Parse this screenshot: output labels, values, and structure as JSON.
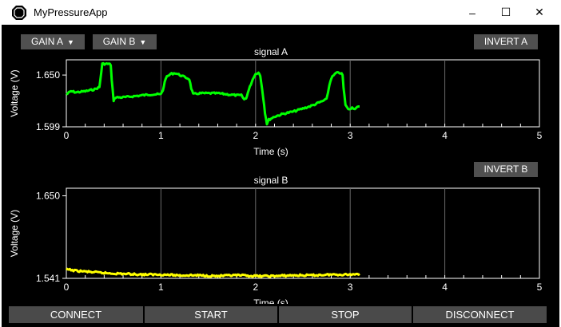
{
  "window": {
    "title": "MyPressureApp",
    "minimize": "–",
    "maximize": "☐",
    "close": "✕"
  },
  "controls": {
    "gain_a": "GAIN A",
    "gain_b": "GAIN B",
    "invert_a": "INVERT A",
    "invert_b": "INVERT B"
  },
  "colors": {
    "signal_a": "#00ff00",
    "signal_b": "#ffff00",
    "button_bg": "#505050"
  },
  "chart_data": [
    {
      "type": "line",
      "title": "signal A",
      "xlabel": "Time (s)",
      "ylabel": "Voltage (V)",
      "xlim": [
        0,
        5
      ],
      "ylim": [
        1.599,
        1.665
      ],
      "xticks": [
        "0",
        "1",
        "2",
        "3",
        "4",
        "5"
      ],
      "yticks": [
        "1.599",
        "1.650"
      ],
      "grid": "vertical",
      "series": [
        {
          "color": "#00ff00",
          "points": [
            [
              0,
              1.631
            ],
            [
              0.05,
              1.634
            ],
            [
              0.1,
              1.633
            ],
            [
              0.2,
              1.634
            ],
            [
              0.3,
              1.636
            ],
            [
              0.35,
              1.638
            ],
            [
              0.38,
              1.661
            ],
            [
              0.45,
              1.661
            ],
            [
              0.47,
              1.66
            ],
            [
              0.48,
              1.645
            ],
            [
              0.5,
              1.625
            ],
            [
              0.52,
              1.628
            ],
            [
              0.6,
              1.628
            ],
            [
              0.7,
              1.629
            ],
            [
              0.8,
              1.63
            ],
            [
              0.9,
              1.631
            ],
            [
              1.0,
              1.631
            ],
            [
              1.02,
              1.635
            ],
            [
              1.05,
              1.647
            ],
            [
              1.1,
              1.651
            ],
            [
              1.15,
              1.652
            ],
            [
              1.2,
              1.65
            ],
            [
              1.25,
              1.648
            ],
            [
              1.3,
              1.646
            ],
            [
              1.32,
              1.637
            ],
            [
              1.34,
              1.631
            ],
            [
              1.4,
              1.632
            ],
            [
              1.5,
              1.632
            ],
            [
              1.6,
              1.632
            ],
            [
              1.7,
              1.631
            ],
            [
              1.8,
              1.63
            ],
            [
              1.85,
              1.63
            ],
            [
              1.88,
              1.626
            ],
            [
              1.9,
              1.627
            ],
            [
              1.92,
              1.633
            ],
            [
              1.95,
              1.641
            ],
            [
              1.98,
              1.648
            ],
            [
              2.0,
              1.651
            ],
            [
              2.03,
              1.653
            ],
            [
              2.05,
              1.649
            ],
            [
              2.07,
              1.636
            ],
            [
              2.1,
              1.613
            ],
            [
              2.12,
              1.602
            ],
            [
              2.14,
              1.606
            ],
            [
              2.2,
              1.609
            ],
            [
              2.3,
              1.612
            ],
            [
              2.4,
              1.614
            ],
            [
              2.5,
              1.617
            ],
            [
              2.6,
              1.62
            ],
            [
              2.7,
              1.624
            ],
            [
              2.75,
              1.626
            ],
            [
              2.78,
              1.64
            ],
            [
              2.8,
              1.647
            ],
            [
              2.85,
              1.652
            ],
            [
              2.9,
              1.652
            ],
            [
              2.92,
              1.65
            ],
            [
              2.93,
              1.637
            ],
            [
              2.95,
              1.621
            ],
            [
              2.98,
              1.616
            ],
            [
              3.0,
              1.617
            ],
            [
              3.02,
              1.618
            ],
            [
              3.05,
              1.617
            ],
            [
              3.1,
              1.619
            ]
          ]
        }
      ]
    },
    {
      "type": "line",
      "title": "signal B",
      "xlabel": "Time (s)",
      "ylabel": "Voltage (V)",
      "xlim": [
        0,
        5
      ],
      "ylim": [
        1.541,
        1.66
      ],
      "xticks": [
        "0",
        "1",
        "2",
        "3",
        "4",
        "5"
      ],
      "yticks": [
        "1.541",
        "1.650"
      ],
      "grid": "vertical",
      "series": [
        {
          "color": "#ffff00",
          "points": [
            [
              0,
              1.553
            ],
            [
              0.1,
              1.551
            ],
            [
              0.2,
              1.55
            ],
            [
              0.4,
              1.548
            ],
            [
              0.6,
              1.547
            ],
            [
              0.8,
              1.546
            ],
            [
              1.0,
              1.546
            ],
            [
              1.2,
              1.545
            ],
            [
              1.4,
              1.545
            ],
            [
              1.6,
              1.544
            ],
            [
              1.8,
              1.545
            ],
            [
              2.0,
              1.544
            ],
            [
              2.2,
              1.544
            ],
            [
              2.4,
              1.545
            ],
            [
              2.6,
              1.545
            ],
            [
              2.8,
              1.546
            ],
            [
              3.0,
              1.546
            ],
            [
              3.1,
              1.547
            ]
          ]
        }
      ]
    }
  ],
  "bottom_buttons": [
    "CONNECT",
    "START",
    "STOP",
    "DISCONNECT"
  ]
}
